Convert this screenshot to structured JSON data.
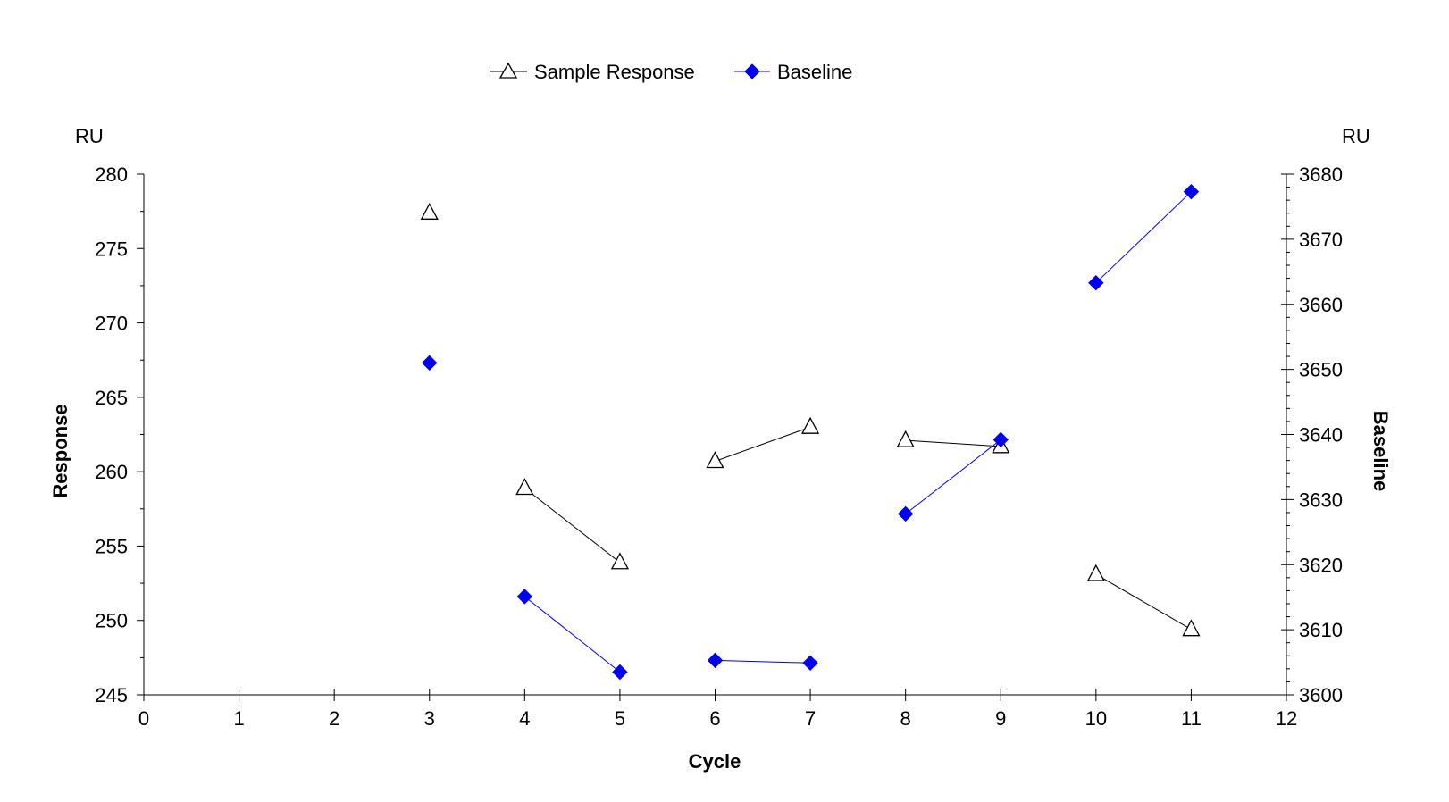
{
  "chart_data": {
    "type": "line",
    "xlabel": "Cycle",
    "ylabel_left": "Response",
    "ylabel_right": "Baseline",
    "unit_left": "RU",
    "unit_right": "RU",
    "xlim": [
      0,
      12
    ],
    "ylim_left": [
      245,
      280
    ],
    "ylim_right": [
      3600,
      3680
    ],
    "x_ticks": [
      "0",
      "1",
      "2",
      "3",
      "4",
      "5",
      "6",
      "7",
      "8",
      "9",
      "10",
      "11",
      "12"
    ],
    "y_ticks_left": [
      "245",
      "250",
      "255",
      "260",
      "265",
      "270",
      "275",
      "280"
    ],
    "y_ticks_right": [
      "3600",
      "3610",
      "3620",
      "3630",
      "3640",
      "3650",
      "3660",
      "3670",
      "3680"
    ],
    "grid": false,
    "legend_position": "top-center",
    "series": [
      {
        "name": "Sample Response",
        "axis": "left",
        "marker": "open-triangle",
        "color": "#000000",
        "segments": [
          [
            [
              3,
              277.4
            ]
          ],
          [
            [
              4,
              258.9
            ],
            [
              5,
              253.9
            ]
          ],
          [
            [
              6,
              260.7
            ],
            [
              7,
              263.0
            ]
          ],
          [
            [
              8,
              262.1
            ],
            [
              9,
              261.7
            ]
          ],
          [
            [
              10,
              253.1
            ],
            [
              11,
              249.4
            ]
          ]
        ]
      },
      {
        "name": "Baseline",
        "axis": "right",
        "marker": "filled-diamond",
        "color": "#0000ee",
        "segments": [
          [
            [
              3,
              3651
            ]
          ],
          [
            [
              4,
              3615.1
            ],
            [
              5,
              3603.5
            ]
          ],
          [
            [
              6,
              3605.3
            ],
            [
              7,
              3604.9
            ]
          ],
          [
            [
              8,
              3627.8
            ],
            [
              9,
              3639.2
            ]
          ],
          [
            [
              10,
              3663.3
            ],
            [
              11,
              3677.3
            ]
          ]
        ]
      }
    ]
  }
}
